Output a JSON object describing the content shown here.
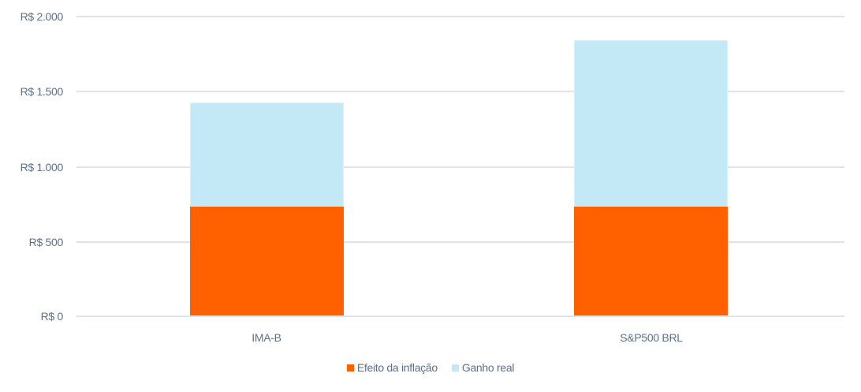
{
  "chart_data": {
    "type": "bar",
    "stacked": true,
    "title": "",
    "xlabel": "",
    "ylabel": "",
    "categories": [
      "IMA-B",
      "S&P500 BRL"
    ],
    "series": [
      {
        "name": "Efeito da inflação",
        "color": "#ff6100",
        "values": [
          730,
          730
        ]
      },
      {
        "name": "Ganho real",
        "color": "#c3e9f7",
        "values": [
          695,
          1110
        ]
      }
    ],
    "totals": [
      1425,
      1840
    ],
    "ylim": [
      0,
      2000
    ],
    "yticks": [
      0,
      500,
      1000,
      1500,
      2000
    ],
    "ytick_labels": [
      "R$ 0",
      "R$ 500",
      "R$ 1.000",
      "R$ 1.500",
      "R$ 2.000"
    ],
    "grid": true,
    "legend_position": "bottom"
  },
  "axis": {
    "y_labels": [
      "R$ 2.000",
      "R$ 1.500",
      "R$ 1.000",
      "R$ 500",
      "R$ 0"
    ]
  },
  "categories": [
    "IMA-B",
    "S&P500 BRL"
  ],
  "legend": [
    {
      "label": "Efeito da inflação",
      "color": "#ff6100"
    },
    {
      "label": "Ganho real",
      "color": "#c3e9f7"
    }
  ]
}
